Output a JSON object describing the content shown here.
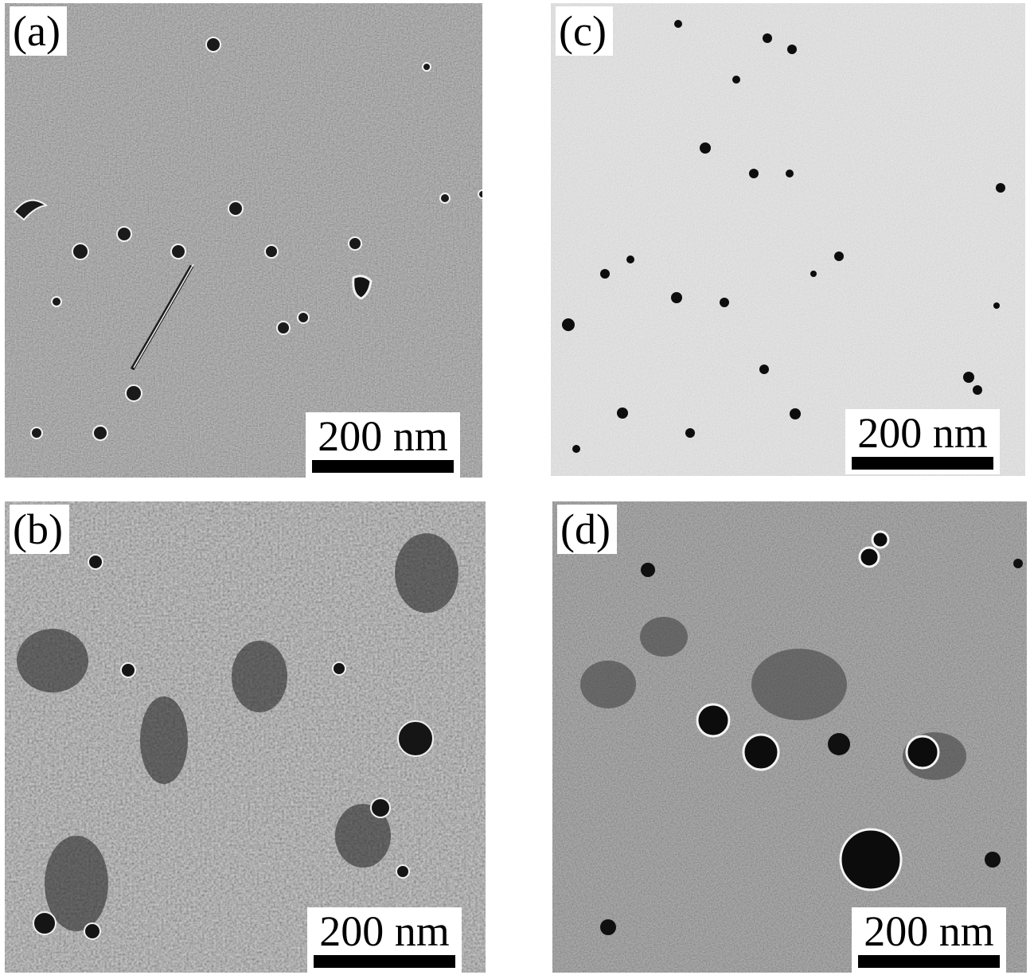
{
  "panels": [
    {
      "id": "a",
      "label": "(a)",
      "scale_text": "200 nm",
      "tone": "medium-gray"
    },
    {
      "id": "b",
      "label": "(b)",
      "scale_text": "200 nm",
      "tone": "mottled-gray"
    },
    {
      "id": "c",
      "label": "(c)",
      "scale_text": "200 nm",
      "tone": "light-gray"
    },
    {
      "id": "d",
      "label": "(d)",
      "scale_text": "200 nm",
      "tone": "medium-gray"
    }
  ],
  "colors": {
    "background": "#ffffff",
    "label_text": "#000000",
    "scale_bar": "#000000"
  }
}
